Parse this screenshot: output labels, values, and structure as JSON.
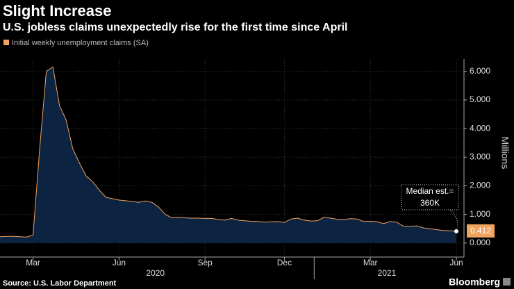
{
  "chart_data": {
    "type": "area",
    "title": "Slight Increase",
    "subtitle": "U.S. jobless claims unexpectedly rise for the first time since April",
    "y_label": "Millions",
    "source": "Source: U.S. Labor Department",
    "brand": "Bloomberg",
    "annotation": [
      "Median est.=",
      "360K"
    ],
    "categories": [
      null,
      null,
      null,
      null,
      null,
      "Mar",
      null,
      null,
      null,
      null,
      null,
      null,
      null,
      null,
      null,
      null,
      null,
      null,
      "Jun",
      null,
      null,
      null,
      null,
      null,
      null,
      null,
      null,
      null,
      null,
      null,
      null,
      "Sep",
      null,
      null,
      null,
      null,
      null,
      null,
      null,
      null,
      null,
      null,
      null,
      "Dec",
      null,
      null,
      null,
      null,
      null,
      null,
      null,
      null,
      null,
      null,
      null,
      null,
      "Mar",
      null,
      null,
      null,
      null,
      null,
      null,
      null,
      null,
      null,
      null,
      null,
      null,
      "Jun"
    ],
    "x_groups": [
      {
        "label": "2020",
        "size": 48
      },
      {
        "label": "2021",
        "size": 22
      }
    ],
    "series": [
      {
        "name": "Initial weekly unemployment claims (SA)",
        "color": "#f0a35e",
        "values": [
          0.22,
          0.23,
          0.23,
          0.22,
          0.21,
          0.28,
          3.3,
          6.0,
          6.15,
          4.8,
          4.3,
          3.3,
          2.8,
          2.35,
          2.15,
          1.85,
          1.6,
          1.55,
          1.5,
          1.48,
          1.45,
          1.42,
          1.47,
          1.42,
          1.25,
          1.0,
          0.88,
          0.9,
          0.88,
          0.87,
          0.87,
          0.86,
          0.86,
          0.82,
          0.8,
          0.86,
          0.8,
          0.78,
          0.76,
          0.75,
          0.73,
          0.74,
          0.75,
          0.72,
          0.84,
          0.87,
          0.8,
          0.77,
          0.78,
          0.9,
          0.87,
          0.83,
          0.82,
          0.85,
          0.84,
          0.75,
          0.76,
          0.74,
          0.68,
          0.75,
          0.73,
          0.59,
          0.58,
          0.6,
          0.53,
          0.5,
          0.47,
          0.44,
          0.43,
          0.412
        ]
      }
    ],
    "ylim": [
      -0.49,
      6.43
    ],
    "yticks": [
      {
        "value": 0,
        "label": "0.000"
      },
      {
        "value": 1,
        "label": "1.000"
      },
      {
        "value": 2,
        "label": "2.000"
      },
      {
        "value": 3,
        "label": "3.000"
      },
      {
        "value": 4,
        "label": "4.000"
      },
      {
        "value": 5,
        "label": "5.000"
      },
      {
        "value": 6,
        "label": "6.000"
      }
    ],
    "area_color": "#0d2342",
    "grid": true
  }
}
